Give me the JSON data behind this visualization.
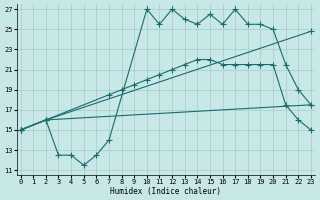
{
  "xlabel": "Humidex (Indice chaleur)",
  "background_color": "#c8e8e8",
  "grid_color": "#a8d0d0",
  "line_color": "#1a6b6b",
  "xlim": [
    -0.3,
    23.3
  ],
  "ylim": [
    10.5,
    27.5
  ],
  "xticks": [
    0,
    1,
    2,
    3,
    4,
    5,
    6,
    7,
    8,
    9,
    10,
    11,
    12,
    13,
    14,
    15,
    16,
    17,
    18,
    19,
    20,
    21,
    22,
    23
  ],
  "yticks": [
    11,
    13,
    15,
    17,
    19,
    21,
    23,
    25,
    27
  ],
  "line1_x": [
    0,
    2,
    3,
    4,
    5,
    6,
    7,
    10,
    11,
    12,
    13,
    14,
    15,
    16,
    17,
    18,
    19,
    20,
    21,
    22,
    23
  ],
  "line1_y": [
    15,
    16,
    12.5,
    12.5,
    11.5,
    12.5,
    14,
    27,
    25.5,
    27,
    26,
    25.5,
    26.5,
    25.5,
    27,
    25.5,
    25.5,
    25.0,
    21.5,
    19.0,
    17.5
  ],
  "line2_x": [
    0,
    2,
    23
  ],
  "line2_y": [
    15,
    16,
    24.8
  ],
  "line3_x": [
    0,
    2,
    7,
    8,
    9,
    10,
    11,
    12,
    13,
    14,
    15,
    16,
    17,
    18,
    19,
    20,
    21,
    22,
    23
  ],
  "line3_y": [
    15,
    16,
    18.5,
    19,
    19.5,
    20,
    20.5,
    21,
    21.5,
    22,
    22,
    21.5,
    21.5,
    21.5,
    21.5,
    21.5,
    17.5,
    16,
    15
  ],
  "line4_x": [
    0,
    2,
    23
  ],
  "line4_y": [
    15,
    16,
    17.5
  ]
}
